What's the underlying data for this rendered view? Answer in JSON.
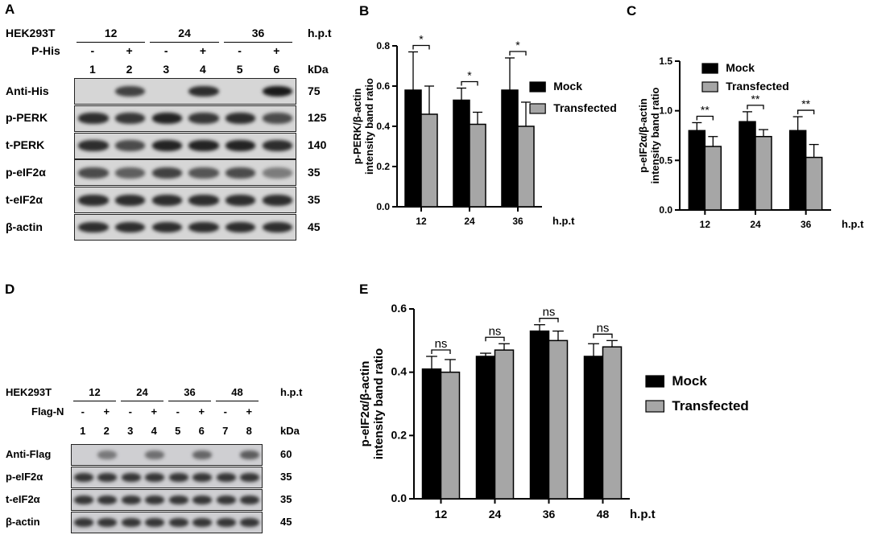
{
  "panel_labels": {
    "a": "A",
    "b": "B",
    "c": "C",
    "d": "D",
    "e": "E"
  },
  "blotA": {
    "cell_line": "HEK293T",
    "time_unit": "h.p.t",
    "times": [
      "12",
      "24",
      "36"
    ],
    "treatment": "P-His",
    "signs": [
      "-",
      "+",
      "-",
      "+",
      "-",
      "+"
    ],
    "lanes": [
      "1",
      "2",
      "3",
      "4",
      "5",
      "6"
    ],
    "kda_label": "kDa",
    "rows": [
      {
        "name": "Anti-His",
        "kda": "75",
        "intensity": [
          0,
          0.75,
          0,
          0.85,
          0,
          0.95
        ]
      },
      {
        "name": "p-PERK",
        "kda": "125",
        "intensity": [
          0.85,
          0.8,
          0.9,
          0.8,
          0.85,
          0.7
        ]
      },
      {
        "name": "t-PERK",
        "kda": "140",
        "intensity": [
          0.85,
          0.7,
          0.9,
          0.9,
          0.9,
          0.85
        ]
      },
      {
        "name": "p-eIF2α",
        "kda": "35",
        "intensity": [
          0.7,
          0.6,
          0.75,
          0.65,
          0.7,
          0.45
        ]
      },
      {
        "name": "t-eIF2α",
        "kda": "35",
        "intensity": [
          0.85,
          0.85,
          0.85,
          0.85,
          0.85,
          0.85
        ]
      },
      {
        "name": "β-actin",
        "kda": "45",
        "intensity": [
          0.85,
          0.85,
          0.85,
          0.85,
          0.85,
          0.85
        ]
      }
    ]
  },
  "blotD": {
    "cell_line": "HEK293T",
    "time_unit": "h.p.t",
    "times": [
      "12",
      "24",
      "36",
      "48"
    ],
    "treatment": "Flag-N",
    "signs": [
      "-",
      "+",
      "-",
      "+",
      "-",
      "+",
      "-",
      "+"
    ],
    "lanes": [
      "1",
      "2",
      "3",
      "4",
      "5",
      "6",
      "7",
      "8"
    ],
    "kda_label": "kDa",
    "rows": [
      {
        "name": "Anti-Flag",
        "kda": "60",
        "intensity": [
          0,
          0.45,
          0,
          0.5,
          0,
          0.55,
          0,
          0.6
        ]
      },
      {
        "name": "p-eIF2α",
        "kda": "35",
        "intensity": [
          0.8,
          0.8,
          0.8,
          0.8,
          0.8,
          0.8,
          0.8,
          0.8
        ]
      },
      {
        "name": "t-eIF2α",
        "kda": "35",
        "intensity": [
          0.8,
          0.8,
          0.8,
          0.8,
          0.8,
          0.8,
          0.8,
          0.8
        ]
      },
      {
        "name": "β-actin",
        "kda": "45",
        "intensity": [
          0.8,
          0.8,
          0.8,
          0.8,
          0.8,
          0.8,
          0.8,
          0.8
        ]
      }
    ]
  },
  "colors": {
    "mock": "#000000",
    "transfected": "#a6a6a6"
  },
  "chart_data": [
    {
      "id": "B",
      "type": "bar",
      "categories": [
        "12",
        "24",
        "36"
      ],
      "xlabel": "h.p.t",
      "ylabel": [
        "p-PERK/β-actin",
        "intensity band ratio"
      ],
      "ylim": [
        0,
        0.8
      ],
      "yticks": [
        "0.0",
        "0.2",
        "0.4",
        "0.6",
        "0.8"
      ],
      "legend": "right",
      "series": [
        {
          "name": "Mock",
          "values": [
            0.58,
            0.53,
            0.58
          ],
          "err": [
            0.19,
            0.06,
            0.16
          ]
        },
        {
          "name": "Transfected",
          "values": [
            0.46,
            0.41,
            0.4
          ],
          "err": [
            0.14,
            0.06,
            0.12
          ]
        }
      ],
      "significance": [
        "*",
        "*",
        "*"
      ]
    },
    {
      "id": "C",
      "type": "bar",
      "categories": [
        "12",
        "24",
        "36"
      ],
      "xlabel": "h.p.t",
      "ylabel": [
        "p-eIF2α/β-actin",
        "intensity band ratio"
      ],
      "ylim": [
        0,
        1.5
      ],
      "yticks": [
        "0.0",
        "0.5",
        "1.0",
        "1.5"
      ],
      "legend": "top-right",
      "series": [
        {
          "name": "Mock",
          "values": [
            0.8,
            0.89,
            0.8
          ],
          "err": [
            0.08,
            0.1,
            0.14
          ]
        },
        {
          "name": "Transfected",
          "values": [
            0.64,
            0.74,
            0.53
          ],
          "err": [
            0.1,
            0.07,
            0.13
          ]
        }
      ],
      "significance": [
        "**",
        "**",
        "**"
      ]
    },
    {
      "id": "E",
      "type": "bar",
      "categories": [
        "12",
        "24",
        "36",
        "48"
      ],
      "xlabel": "h.p.t",
      "ylabel": [
        "p-eIF2α/β-actin",
        "intensity band ratio"
      ],
      "ylim": [
        0,
        0.6
      ],
      "yticks": [
        "0.0",
        "0.2",
        "0.4",
        "0.6"
      ],
      "legend": "right",
      "series": [
        {
          "name": "Mock",
          "values": [
            0.41,
            0.45,
            0.53,
            0.45
          ],
          "err": [
            0.04,
            0.01,
            0.02,
            0.04
          ]
        },
        {
          "name": "Transfected",
          "values": [
            0.4,
            0.47,
            0.5,
            0.48
          ],
          "err": [
            0.04,
            0.02,
            0.03,
            0.02
          ]
        }
      ],
      "significance": [
        "ns",
        "ns",
        "ns",
        "ns"
      ]
    }
  ]
}
